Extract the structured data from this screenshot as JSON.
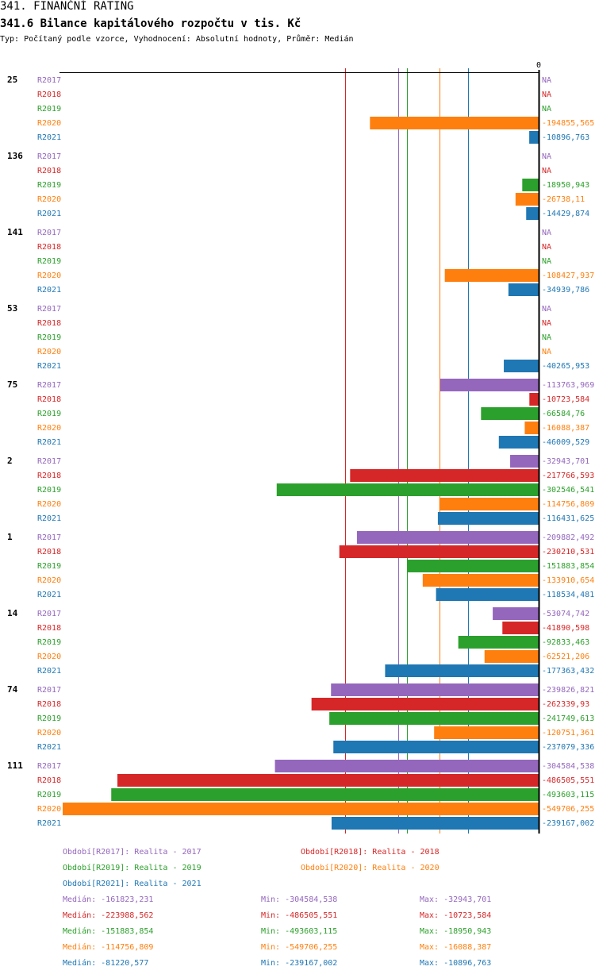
{
  "header": {
    "title": "341. FINANČNÍ RATING",
    "subtitle": "341.6 Bilance kapitálového rozpočtu v tis. Kč",
    "info": "Typ: Počítaný podle vzorce, Vyhodnocení: Absolutní hodnoty, Průměr: Medián"
  },
  "colors": {
    "R2017": "#9467bd",
    "R2018": "#d62728",
    "R2019": "#2ca02c",
    "R2020": "#ff7f0e",
    "R2021": "#1f77b4"
  },
  "chart_data": {
    "type": "bar",
    "orientation": "horizontal",
    "title": "341.6 Bilance kapitálového rozpočtu v tis. Kč",
    "zero_label": "0",
    "xlim": [
      -549706.255,
      0
    ],
    "series_names": [
      "R2017",
      "R2018",
      "R2019",
      "R2020",
      "R2021"
    ],
    "groups": [
      {
        "label": "25",
        "values": [
          null,
          null,
          null,
          -194855.565,
          -10896.763
        ],
        "labels": [
          "NA",
          "NA",
          "NA",
          "-194855,565",
          "-10896,763"
        ]
      },
      {
        "label": "136",
        "values": [
          null,
          null,
          -18950.943,
          -26738.11,
          -14429.874
        ],
        "labels": [
          "NA",
          "NA",
          "-18950,943",
          "-26738,11",
          "-14429,874"
        ]
      },
      {
        "label": "141",
        "values": [
          null,
          null,
          null,
          -108427.937,
          -34939.786
        ],
        "labels": [
          "NA",
          "NA",
          "NA",
          "-108427,937",
          "-34939,786"
        ]
      },
      {
        "label": "53",
        "values": [
          null,
          null,
          null,
          null,
          -40265.953
        ],
        "labels": [
          "NA",
          "NA",
          "NA",
          "NA",
          "-40265,953"
        ]
      },
      {
        "label": "75",
        "values": [
          -113763.969,
          -10723.584,
          -66584.76,
          -16088.387,
          -46009.529
        ],
        "labels": [
          "-113763,969",
          "-10723,584",
          "-66584,76",
          "-16088,387",
          "-46009,529"
        ]
      },
      {
        "label": "2",
        "values": [
          -32943.701,
          -217766.593,
          -302546.541,
          -114756.809,
          -116431.625
        ],
        "labels": [
          "-32943,701",
          "-217766,593",
          "-302546,541",
          "-114756,809",
          "-116431,625"
        ]
      },
      {
        "label": "1",
        "values": [
          -209882.492,
          -230210.531,
          -151883.854,
          -133910.654,
          -118534.481
        ],
        "labels": [
          "-209882,492",
          "-230210,531",
          "-151883,854",
          "-133910,654",
          "-118534,481"
        ]
      },
      {
        "label": "14",
        "values": [
          -53074.742,
          -41890.598,
          -92833.463,
          -62521.206,
          -177363.432
        ],
        "labels": [
          "-53074,742",
          "-41890,598",
          "-92833,463",
          "-62521,206",
          "-177363,432"
        ]
      },
      {
        "label": "74",
        "values": [
          -239826.821,
          -262339.93,
          -241749.613,
          -120751.361,
          -237079.336
        ],
        "labels": [
          "-239826,821",
          "-262339,93",
          "-241749,613",
          "-120751,361",
          "-237079,336"
        ]
      },
      {
        "label": "111",
        "values": [
          -304584.538,
          -486505.551,
          -493603.115,
          -549706.255,
          -239167.002
        ],
        "labels": [
          "-304584,538",
          "-486505,551",
          "-493603,115",
          "-549706,255",
          "-239167,002"
        ]
      }
    ],
    "medians": {
      "R2017": -161823.231,
      "R2018": -223988.562,
      "R2019": -151883.854,
      "R2020": -114756.809,
      "R2021": -81220.577
    }
  },
  "legend": {
    "periods": [
      {
        "key": "R2017",
        "text": "Období[R2017]: Realita - 2017"
      },
      {
        "key": "R2018",
        "text": "Období[R2018]: Realita - 2018"
      },
      {
        "key": "R2019",
        "text": "Období[R2019]: Realita - 2019"
      },
      {
        "key": "R2020",
        "text": "Období[R2020]: Realita - 2020"
      },
      {
        "key": "R2021",
        "text": "Období[R2021]: Realita - 2021"
      }
    ],
    "stats": [
      {
        "key": "R2017",
        "median": "Medián: -161823,231",
        "min": "Min: -304584,538",
        "max": "Max: -32943,701"
      },
      {
        "key": "R2018",
        "median": "Medián: -223988,562",
        "min": "Min: -486505,551",
        "max": "Max: -10723,584"
      },
      {
        "key": "R2019",
        "median": "Medián: -151883,854",
        "min": "Min: -493603,115",
        "max": "Max: -18950,943"
      },
      {
        "key": "R2020",
        "median": "Medián: -114756,809",
        "min": "Min: -549706,255",
        "max": "Max: -16088,387"
      },
      {
        "key": "R2021",
        "median": "Medián: -81220,577",
        "min": "Min: -239167,002",
        "max": "Max: -10896,763"
      }
    ]
  }
}
